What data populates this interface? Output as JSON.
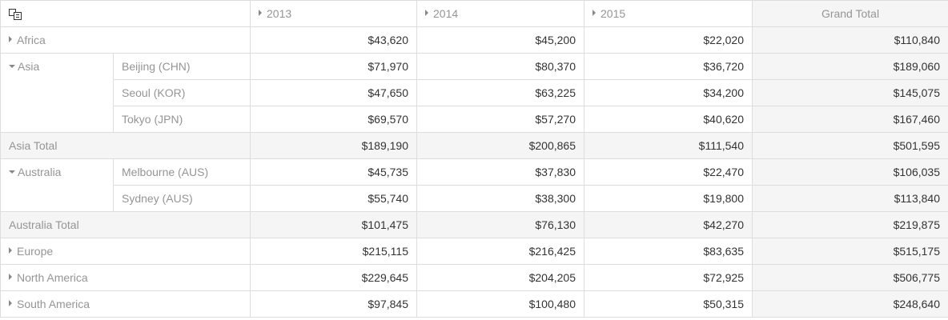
{
  "columns": {
    "years": [
      "2013",
      "2014",
      "2015"
    ],
    "grand_total_label": "Grand Total"
  },
  "icons": {
    "field_list": "field-list-icon",
    "expand": "triangle-right-icon",
    "collapse": "triangle-down-icon"
  },
  "rows": {
    "africa": {
      "label": "Africa",
      "values": [
        "$43,620",
        "$45,200",
        "$22,020",
        "$110,840"
      ]
    },
    "asia": {
      "label": "Asia",
      "cities": [
        {
          "label": "Beijing (CHN)",
          "values": [
            "$71,970",
            "$80,370",
            "$36,720",
            "$189,060"
          ]
        },
        {
          "label": "Seoul (KOR)",
          "values": [
            "$47,650",
            "$63,225",
            "$34,200",
            "$145,075"
          ]
        },
        {
          "label": "Tokyo (JPN)",
          "values": [
            "$69,570",
            "$57,270",
            "$40,620",
            "$167,460"
          ]
        }
      ],
      "total": {
        "label": "Asia Total",
        "values": [
          "$189,190",
          "$200,865",
          "$111,540",
          "$501,595"
        ]
      }
    },
    "australia": {
      "label": "Australia",
      "cities": [
        {
          "label": "Melbourne (AUS)",
          "values": [
            "$45,735",
            "$37,830",
            "$22,470",
            "$106,035"
          ]
        },
        {
          "label": "Sydney (AUS)",
          "values": [
            "$55,740",
            "$38,300",
            "$19,800",
            "$113,840"
          ]
        }
      ],
      "total": {
        "label": "Australia Total",
        "values": [
          "$101,475",
          "$76,130",
          "$42,270",
          "$219,875"
        ]
      }
    },
    "europe": {
      "label": "Europe",
      "values": [
        "$215,115",
        "$216,425",
        "$83,635",
        "$515,175"
      ]
    },
    "north_america": {
      "label": "North America",
      "values": [
        "$229,645",
        "$204,205",
        "$72,925",
        "$506,775"
      ]
    },
    "south_america": {
      "label": "South America",
      "values": [
        "$97,845",
        "$100,480",
        "$50,315",
        "$248,640"
      ]
    }
  }
}
